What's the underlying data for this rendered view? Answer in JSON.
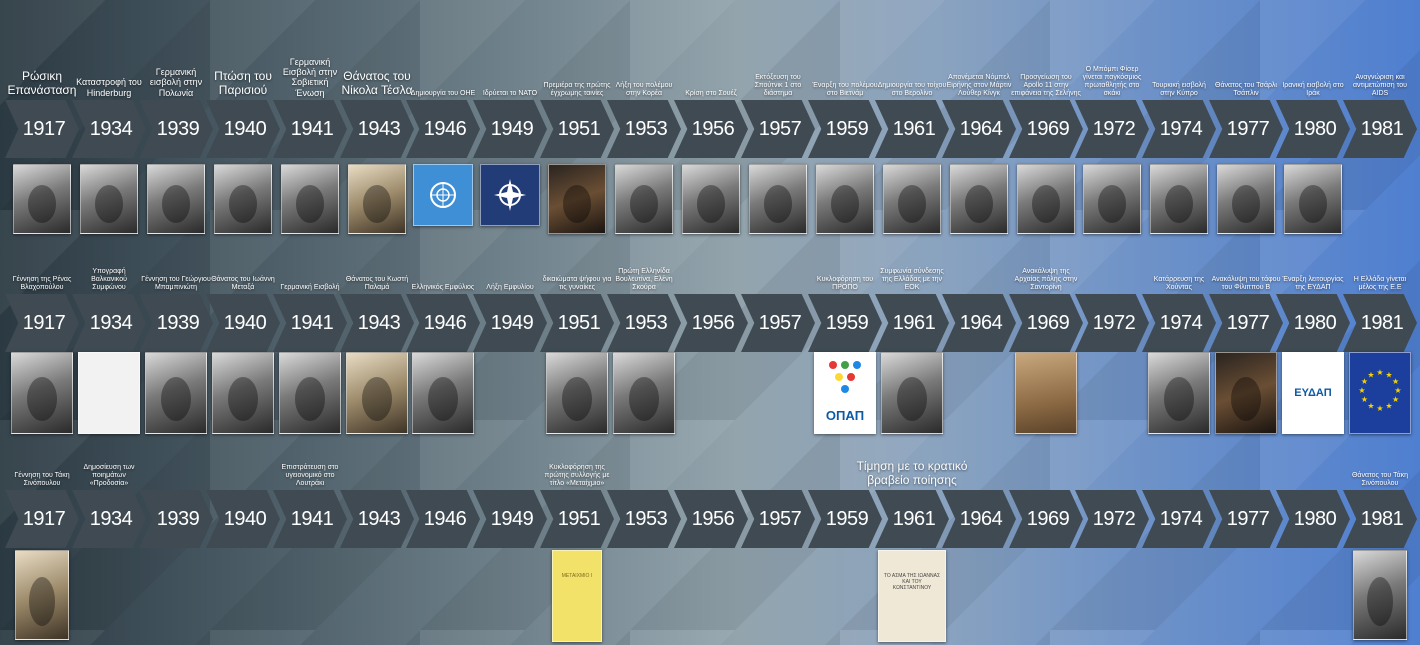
{
  "years": [
    "1917",
    "1934",
    "1939",
    "1940",
    "1941",
    "1943",
    "1946",
    "1949",
    "1951",
    "1953",
    "1956",
    "1957",
    "1959",
    "1961",
    "1964",
    "1969",
    "1972",
    "1974",
    "1977",
    "1980",
    "1981"
  ],
  "row1": {
    "labels": [
      {
        "i": 0,
        "text": "Ρώσικη Επανάσταση",
        "size": "l"
      },
      {
        "i": 1,
        "text": "Καταστροφή του Hinderburg",
        "size": "m"
      },
      {
        "i": 2,
        "text": "Γερμανική εισβολή στην Πολωνία",
        "size": "m"
      },
      {
        "i": 3,
        "text": "Πτώση του Παρισιού",
        "size": "l"
      },
      {
        "i": 4,
        "text": "Γερμανική Εισβολή στην Σοβιετική Ένωση",
        "size": "m"
      },
      {
        "i": 5,
        "text": "Θάνατος του Νίκολα Τέσλα",
        "size": "l"
      },
      {
        "i": 6,
        "text": "Δημιουργία του ΟΗΕ",
        "size": "s"
      },
      {
        "i": 7,
        "text": "Ιδρύεται το ΝΑΤΟ",
        "size": "s"
      },
      {
        "i": 8,
        "text": "Πρεμιέρα της πρώτης έγχρωμης ταινίες",
        "size": "s"
      },
      {
        "i": 9,
        "text": "Λήξη του πολέμου στην Κορέα",
        "size": "s"
      },
      {
        "i": 10,
        "text": "Κρίση στο Σουέζ",
        "size": "s"
      },
      {
        "i": 11,
        "text": "Εκτόξευση του Σπούτνικ 1 στο διάστημα",
        "size": "s"
      },
      {
        "i": 12,
        "text": "Έναρξη του πολέμου στο Βιετνάμ",
        "size": "s"
      },
      {
        "i": 13,
        "text": "Δημιουργία του τοίχου στο Βερολίνο",
        "size": "s"
      },
      {
        "i": 14,
        "text": "Απονέμεται Νόμπελ Ειρήνης στον Μάρτιν Λούθερ Κίνγκ",
        "size": "s"
      },
      {
        "i": 15,
        "text": "Προσγείωση του Apollo 11 στην επιφάνεια της Σελήνης",
        "size": "s"
      },
      {
        "i": 16,
        "text": "Ο Μπόμπι Φίσερ γίνεται παγκόσμιος πρωταθλητής στο σκάκι",
        "size": "s"
      },
      {
        "i": 17,
        "text": "Τουρκική εισβολή στην Κύπρο",
        "size": "s"
      },
      {
        "i": 18,
        "text": "Θάνατος του Τσάρλι Τσάπλιν",
        "size": "s"
      },
      {
        "i": 19,
        "text": "Ιρανική εισβολή στο Ιράκ",
        "size": "s"
      },
      {
        "i": 20,
        "text": "Αναγνώριση και αντιμετώπιση του AIDS",
        "size": "s"
      }
    ]
  },
  "row2": {
    "labels": [
      {
        "i": 0,
        "text": "Γέννηση της Ρένας Βλαχοπούλου",
        "size": "s"
      },
      {
        "i": 1,
        "text": "Υπογραφή Βαλκανικού Συμφώνου",
        "size": "s"
      },
      {
        "i": 2,
        "text": "Γέννηση του Γεώργιου Μπαμπινιώτη",
        "size": "s"
      },
      {
        "i": 3,
        "text": "Θάνατος του Ιωάννη Μεταξά",
        "size": "s"
      },
      {
        "i": 4,
        "text": "Γερμανική Εισβολή",
        "size": "s"
      },
      {
        "i": 5,
        "text": "Θάνατος του Κωστή Παλαμά",
        "size": "s"
      },
      {
        "i": 6,
        "text": "Ελληνικός Εμφύλιος",
        "size": "s"
      },
      {
        "i": 7,
        "text": "Λήξη Εμφυλίου",
        "size": "s"
      },
      {
        "i": 8,
        "text": "δικαιώματα ψήφου για τις γυναίκες",
        "size": "s"
      },
      {
        "i": 9,
        "text": "Πρώτη Ελληνίδα Βουλευτίνα, Ελένη Σκούρα",
        "size": "s"
      },
      {
        "i": 12,
        "text": "Κυκλοφόρηση του ΠΡΟΠΟ",
        "size": "s"
      },
      {
        "i": 13,
        "text": "Συμφωνία σύνδεσης της Ελλάδας με την ΕΟΚ",
        "size": "s"
      },
      {
        "i": 15,
        "text": "Ανακάλυψη της Αρχαίας πόλης στην Σαντορίνη",
        "size": "s"
      },
      {
        "i": 17,
        "text": "Κατάρρευση της Χούντας",
        "size": "s"
      },
      {
        "i": 18,
        "text": "Ανακάλυψη του τάφου του Φίλιππου Β",
        "size": "s"
      },
      {
        "i": 19,
        "text": "Έναρξη λειτουργίας της ΕΥΔΑΠ",
        "size": "s"
      },
      {
        "i": 20,
        "text": "Η Ελλάδα γίνεται μέλος της Ε.Ε",
        "size": "s"
      }
    ]
  },
  "row3": {
    "labels": [
      {
        "i": 0,
        "text": "Γέννηση του Τάκη Σινόπουλου",
        "size": "s"
      },
      {
        "i": 1,
        "text": "Δημοσίευση των ποιημάτων «Προδοσία»",
        "size": "s"
      },
      {
        "i": 4,
        "text": "Επιστράτευση στο υγειονομικό στο Λουτράκι",
        "size": "s"
      },
      {
        "i": 8,
        "text": "Κυκλοφόρηση της πρώτης συλλογής με τίτλο «Μεταίχμιο»",
        "size": "s"
      },
      {
        "i": 13,
        "text": "Τίμηση με το κρατικό βραβείο ποίησης",
        "size": "xl"
      },
      {
        "i": 20,
        "text": "Θάνατος του Τάκη Σινόπουλου",
        "size": "s"
      }
    ]
  },
  "images_row1": [
    {
      "i": 0,
      "kind": "bw",
      "name": "revolution-photo"
    },
    {
      "i": 1,
      "kind": "bw",
      "name": "hindenburg-photo"
    },
    {
      "i": 2,
      "kind": "bw",
      "name": "poland-invasion-photo"
    },
    {
      "i": 3,
      "kind": "bw",
      "name": "paris-fall-photo"
    },
    {
      "i": 4,
      "kind": "bw",
      "name": "barbarossa-photo"
    },
    {
      "i": 5,
      "kind": "sepia",
      "name": "tesla-portrait"
    },
    {
      "i": 6,
      "kind": "blue",
      "name": "un-flag"
    },
    {
      "i": 7,
      "kind": "navy",
      "name": "nato-emblem"
    },
    {
      "i": 8,
      "kind": "dark",
      "name": "color-film-photo"
    },
    {
      "i": 9,
      "kind": "bw",
      "name": "korea-war-photo"
    },
    {
      "i": 10,
      "kind": "bw",
      "name": "suez-crisis-photo"
    },
    {
      "i": 11,
      "kind": "bw",
      "name": "sputnik-photo"
    },
    {
      "i": 12,
      "kind": "bw",
      "name": "vietnam-helicopters-photo"
    },
    {
      "i": 13,
      "kind": "bw",
      "name": "berlin-wall-photo"
    },
    {
      "i": 14,
      "kind": "bw",
      "name": "mlk-portrait"
    },
    {
      "i": 15,
      "kind": "bw",
      "name": "apollo-photo"
    },
    {
      "i": 16,
      "kind": "bw",
      "name": "fischer-photo"
    },
    {
      "i": 17,
      "kind": "bw",
      "name": "cyprus-invasion-photo"
    },
    {
      "i": 18,
      "kind": "bw",
      "name": "chaplin-photo"
    },
    {
      "i": 19,
      "kind": "bw",
      "name": "iran-iraq-photo"
    }
  ],
  "images_row2": [
    {
      "i": 0,
      "kind": "bw",
      "name": "rena-vlahopoulou-photo"
    },
    {
      "i": 1,
      "kind": "yellowmap",
      "name": "balkan-pact-map"
    },
    {
      "i": 2,
      "kind": "bw",
      "name": "babiniotis-portrait"
    },
    {
      "i": 3,
      "kind": "bw",
      "name": "metaxas-portrait"
    },
    {
      "i": 4,
      "kind": "bw",
      "name": "german-invasion-photo"
    },
    {
      "i": 5,
      "kind": "sepia",
      "name": "palamas-portrait"
    },
    {
      "i": 6,
      "kind": "bw",
      "name": "civil-war-photo"
    },
    {
      "i": 8,
      "kind": "bw",
      "name": "women-vote-photo"
    },
    {
      "i": 9,
      "kind": "bw",
      "name": "eleni-skoura-portrait"
    },
    {
      "i": 12,
      "kind": "white",
      "name": "opap-logo",
      "text": "ΟΠΑΠ"
    },
    {
      "i": 13,
      "kind": "bw",
      "name": "eok-signing-photo"
    },
    {
      "i": 15,
      "kind": "stone",
      "name": "santorini-ruins-photo"
    },
    {
      "i": 17,
      "kind": "bw",
      "name": "junta-collapse-photo"
    },
    {
      "i": 18,
      "kind": "dark",
      "name": "philip-tomb-photo"
    },
    {
      "i": 19,
      "kind": "white",
      "name": "eydap-logo",
      "text": "ΕΥΔΑΠ"
    },
    {
      "i": 20,
      "kind": "eu",
      "name": "eu-flag"
    }
  ],
  "images_row3": [
    {
      "i": 0,
      "kind": "sepia",
      "name": "sinopoulos-young-photo"
    },
    {
      "i": 8,
      "kind": "book",
      "name": "metaichmio-book-cover",
      "text": "ΜΕΤΑΙΧΜΙΟ Ι"
    },
    {
      "i": 13,
      "kind": "book2",
      "name": "award-book-cover",
      "text": "ΤΟ ΑΣΜΑ ΤΗΣ ΙΩΑΝΝΑΣ ΚΑΙ ΤΟΥ ΚΩΝΣΤΑΝΤΙΝΟΥ"
    },
    {
      "i": 20,
      "kind": "bw",
      "name": "sinopoulos-late-photo"
    }
  ]
}
